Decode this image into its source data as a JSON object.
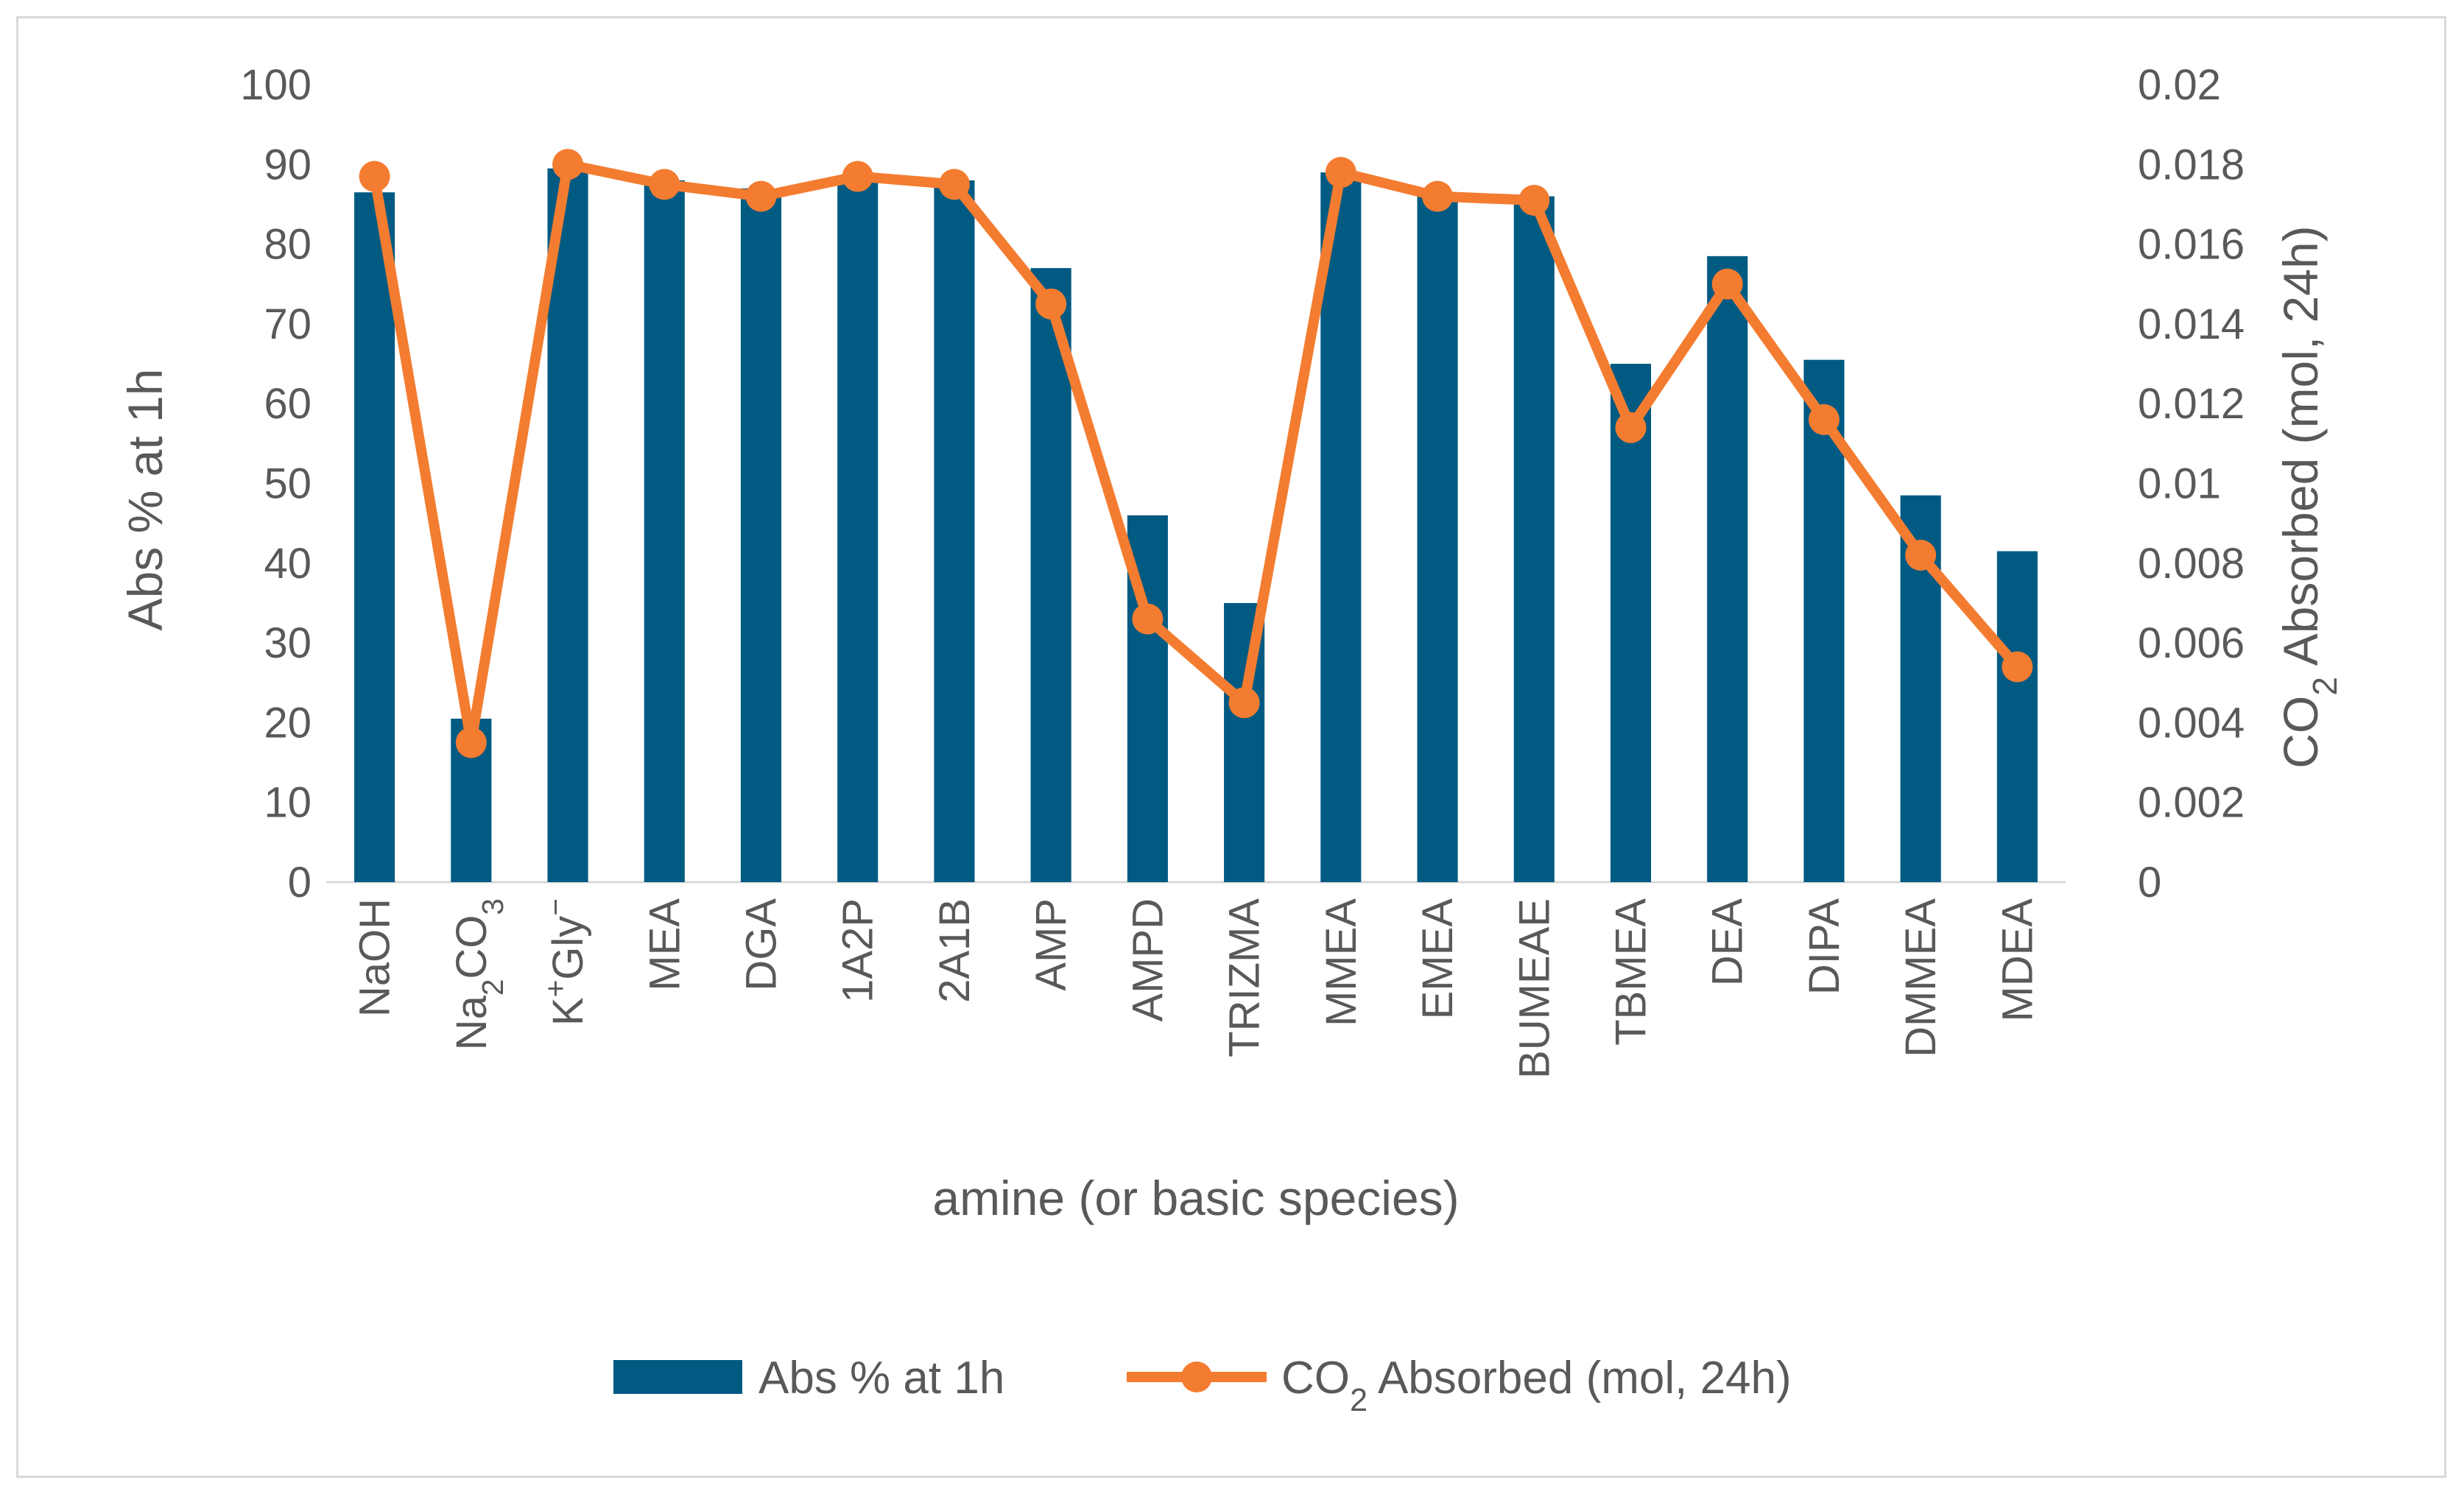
{
  "chart_data": {
    "type": "bar+line",
    "title": "",
    "xlabel": "amine (or basic species)",
    "ylabel": "Abs % at 1h",
    "y2label": "CO₂ Absorbed (mol, 24h)",
    "ylim": [
      0,
      100
    ],
    "y2lim": [
      0,
      0.02
    ],
    "yticks": [
      "0",
      "10",
      "20",
      "30",
      "40",
      "50",
      "60",
      "70",
      "80",
      "90",
      "100"
    ],
    "y2ticks": [
      "0",
      "0.002",
      "0.004",
      "0.006",
      "0.008",
      "0.01",
      "0.012",
      "0.014",
      "0.016",
      "0.018",
      "0.02"
    ],
    "categories": [
      "NaOH",
      "Na₂CO₃",
      "K⁺Gly⁻",
      "MEA",
      "DGA",
      "1A2P",
      "2A1B",
      "AMP",
      "AMPD",
      "TRIZMA",
      "MMEA",
      "EMEA",
      "BUMEAE",
      "TBMEA",
      "DEA",
      "DIPA",
      "DMMEA",
      "MDEA"
    ],
    "series": [
      {
        "name": "Abs % at 1h",
        "type": "bar",
        "axis": "left",
        "color": "#005A82",
        "values": [
          86.5,
          20.5,
          89.5,
          88,
          87,
          88.5,
          88,
          77,
          46,
          35,
          89,
          86,
          86,
          65,
          78.5,
          65.5,
          48.5,
          41.5
        ]
      },
      {
        "name": "CO₂ Absorbed (mol, 24h)",
        "type": "line",
        "axis": "right",
        "color": "#F47C30",
        "values": [
          0.0177,
          0.0035,
          0.018,
          0.0175,
          0.0172,
          0.0177,
          0.0175,
          0.0145,
          0.0066,
          0.0045,
          0.0178,
          0.0172,
          0.0171,
          0.0114,
          0.015,
          0.0116,
          0.0082,
          0.0054
        ]
      }
    ],
    "legend": {
      "position": "bottom",
      "bar_label": "Abs % at 1h",
      "line_label_prefix": "CO",
      "line_label_sub": "2",
      "line_label_suffix": " Absorbed (mol, 24h)"
    },
    "y2label_parts": {
      "prefix": "CO",
      "sub": "2",
      "suffix": " Absorbed (mol, 24h)"
    },
    "category_parts": {
      "Na₂CO₃": [
        "Na",
        {
          "sub": "2"
        },
        "CO",
        {
          "sub": "3"
        }
      ],
      "K⁺Gly⁻": [
        "K",
        {
          "sup": "+"
        },
        "Gly",
        {
          "sup": "−"
        }
      ]
    }
  }
}
